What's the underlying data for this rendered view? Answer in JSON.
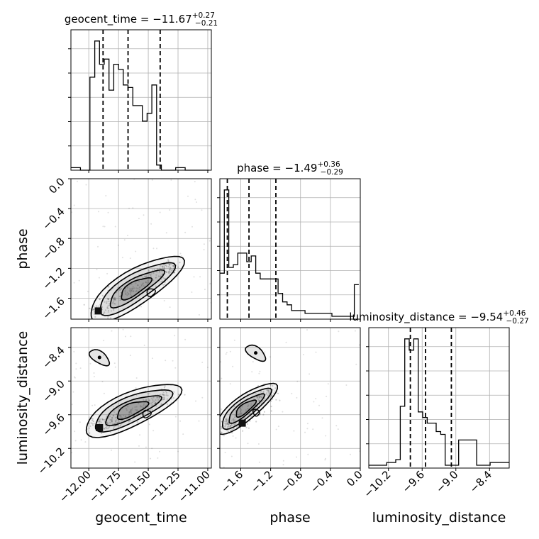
{
  "chart_data": {
    "type": "corner",
    "parameters": [
      "geocent_time",
      "phase",
      "luminosity_distance"
    ],
    "titles": [
      {
        "param": "geocent_time",
        "prefix": "geocent_time = ",
        "median": "−11.67",
        "plus": "+0.27",
        "minus": "−0.21"
      },
      {
        "param": "phase",
        "prefix": "phase = ",
        "median": "−1.49",
        "plus": "+0.36",
        "minus": "−0.29"
      },
      {
        "param": "luminosity_distance",
        "prefix": "luminosity_distance = ",
        "median": "−9.54",
        "plus": "+0.46",
        "minus": "−0.27"
      }
    ],
    "ranges": {
      "geocent_time": [
        -12.15,
        -10.97
      ],
      "phase": [
        -1.88,
        0.0
      ],
      "luminosity_distance": [
        -10.55,
        -8.05
      ]
    },
    "ticks": {
      "geocent_time": [
        -12.0,
        -11.75,
        -11.5,
        -11.25,
        -11.0
      ],
      "phase": [
        -1.6,
        -1.2,
        -0.8,
        -0.4,
        0.0
      ],
      "luminosity_distance": [
        -10.2,
        -9.6,
        -9.0,
        -8.4
      ]
    },
    "tick_labels": {
      "geocent_time": [
        "−12.00",
        "−11.75",
        "−11.50",
        "−11.25",
        "−11.00"
      ],
      "phase": [
        "−1.6",
        "−1.2",
        "−0.8",
        "−0.4",
        "0.0"
      ],
      "luminosity_distance": [
        "−10.2",
        "−9.6",
        "−9.0",
        "−8.4"
      ]
    },
    "quantiles": {
      "geocent_time": [
        -11.88,
        -11.67,
        -11.4
      ],
      "phase": [
        -1.78,
        -1.49,
        -1.13
      ],
      "luminosity_distance": [
        -9.81,
        -9.54,
        -9.08
      ]
    },
    "histograms": {
      "geocent_time": {
        "edges": [
          -12.15,
          -12.11,
          -12.07,
          -12.03,
          -11.99,
          -11.95,
          -11.91,
          -11.87,
          -11.83,
          -11.79,
          -11.75,
          -11.71,
          -11.67,
          -11.63,
          -11.59,
          -11.55,
          -11.51,
          -11.47,
          -11.43,
          -11.39,
          -11.35,
          -11.31,
          -11.27,
          -11.23,
          -11.19,
          -11.15,
          -11.11,
          -11.07,
          -11.03,
          -10.99
        ],
        "counts": [
          1,
          1,
          0,
          0,
          36,
          50,
          41,
          43,
          31,
          41,
          39,
          33,
          32,
          25,
          25,
          19,
          22,
          33,
          2,
          0,
          0,
          0,
          1,
          1,
          0,
          0,
          0,
          0,
          0
        ]
      },
      "phase": {
        "edges": [
          -1.88,
          -1.82,
          -1.76,
          -1.7,
          -1.64,
          -1.58,
          -1.52,
          -1.46,
          -1.4,
          -1.34,
          -1.28,
          -1.22,
          -1.16,
          -1.1,
          -1.04,
          -0.98,
          -0.92,
          -0.86,
          -0.8,
          -0.74,
          -0.68,
          -0.62,
          -0.56,
          -0.5,
          -0.44,
          -0.38,
          -0.32,
          -0.26,
          -0.2,
          -0.14,
          -0.08,
          -0.02
        ],
        "counts": [
          16,
          45,
          18,
          19,
          23,
          23,
          20,
          22,
          16,
          14,
          14,
          14,
          14,
          9,
          6,
          5,
          3,
          3,
          3,
          2,
          2,
          2,
          2,
          2,
          2,
          1,
          1,
          1,
          1,
          1,
          12
        ]
      },
      "luminosity_distance": {
        "edges": [
          -10.55,
          -10.47,
          -10.39,
          -10.31,
          -10.23,
          -10.15,
          -10.07,
          -9.99,
          -9.91,
          -9.83,
          -9.75,
          -9.67,
          -9.59,
          -9.51,
          -9.43,
          -9.35,
          -9.27,
          -9.19,
          -9.11,
          -9.03,
          -8.95,
          -8.87,
          -8.79,
          -8.71,
          -8.63,
          -8.55,
          -8.47,
          -8.39,
          -8.31,
          -8.23,
          -8.15,
          -8.05
        ],
        "counts": [
          1,
          1,
          1,
          1,
          2,
          2,
          3,
          22,
          46,
          42,
          46,
          20,
          18,
          16,
          16,
          13,
          12,
          1,
          1,
          1,
          10,
          10,
          10,
          10,
          1,
          1,
          1,
          2,
          2,
          2,
          2
        ]
      }
    },
    "contours_2d": [
      {
        "x": "geocent_time",
        "y": "phase",
        "mode": [
          -11.92,
          -1.77
        ],
        "ridge": [
          [
            -11.92,
            -1.78
          ],
          [
            -11.82,
            -1.62
          ],
          [
            -11.62,
            -1.45
          ],
          [
            -11.42,
            -1.3
          ],
          [
            -11.3,
            -1.15
          ]
        ]
      },
      {
        "x": "geocent_time",
        "y": "luminosity_distance",
        "mode": [
          -11.91,
          -9.83
        ],
        "ridge": [
          [
            -11.96,
            -9.82
          ],
          [
            -11.78,
            -9.7
          ],
          [
            -11.55,
            -9.5
          ],
          [
            -11.32,
            -9.2
          ]
        ]
      },
      {
        "x": "phase",
        "y": "luminosity_distance",
        "mode": [
          -1.58,
          -9.75
        ],
        "ridge": [
          [
            -1.86,
            -9.82
          ],
          [
            -1.62,
            -9.72
          ],
          [
            -1.38,
            -9.4
          ],
          [
            -1.22,
            -9.15
          ]
        ]
      }
    ],
    "secondary_modes": [
      {
        "x": "geocent_time",
        "y": "luminosity_distance",
        "at": [
          -11.91,
          -8.58
        ]
      },
      {
        "x": "phase",
        "y": "luminosity_distance",
        "at": [
          -1.4,
          -8.5
        ]
      }
    ],
    "grid": true,
    "line_color": "#000000",
    "grid_color": "#b0b0b0",
    "fill_color": "#555555"
  }
}
